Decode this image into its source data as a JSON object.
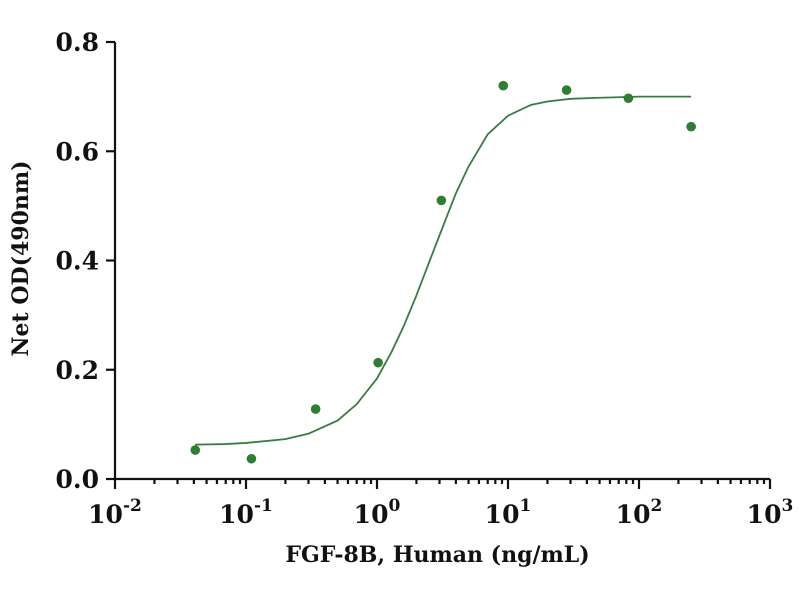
{
  "chart_data": {
    "type": "scatter",
    "title": "",
    "xlabel": "FGF-8B, Human (ng/mL)",
    "ylabel": "Net OD(490nm)",
    "x_scale": "log",
    "xlim": [
      0.01,
      1000
    ],
    "ylim": [
      0,
      0.8
    ],
    "grid": false,
    "legend": "none",
    "colors": {
      "points": "#2e7d32",
      "curve": "#3a7a43",
      "axis": "#111111"
    },
    "y_ticks": [
      {
        "value": 0.0,
        "label": "0.0"
      },
      {
        "value": 0.2,
        "label": "0.2"
      },
      {
        "value": 0.4,
        "label": "0.4"
      },
      {
        "value": 0.6,
        "label": "0.6"
      },
      {
        "value": 0.8,
        "label": "0.8"
      }
    ],
    "x_ticks": [
      {
        "value": 0.01,
        "base": "10",
        "exp": "-2"
      },
      {
        "value": 0.1,
        "base": "10",
        "exp": "-1"
      },
      {
        "value": 1,
        "base": "10",
        "exp": "0"
      },
      {
        "value": 10,
        "base": "10",
        "exp": "1"
      },
      {
        "value": 100,
        "base": "10",
        "exp": "2"
      },
      {
        "value": 1000,
        "base": "10",
        "exp": "3"
      }
    ],
    "series": [
      {
        "type": "scatter",
        "x": [
          0.041,
          0.11,
          0.34,
          1.02,
          3.1,
          9.2,
          28,
          83,
          250
        ],
        "y": [
          0.053,
          0.037,
          0.128,
          0.213,
          0.51,
          0.72,
          0.712,
          0.697,
          0.645
        ]
      },
      {
        "type": "line",
        "x": [
          0.041,
          0.07,
          0.1,
          0.2,
          0.3,
          0.5,
          0.7,
          1.0,
          1.3,
          1.6,
          2.0,
          2.5,
          3.0,
          4.0,
          5.0,
          7.0,
          10,
          15,
          20,
          30,
          50,
          100,
          150,
          250
        ],
        "y": [
          0.063,
          0.064,
          0.066,
          0.073,
          0.083,
          0.107,
          0.137,
          0.184,
          0.234,
          0.28,
          0.336,
          0.397,
          0.446,
          0.523,
          0.572,
          0.631,
          0.665,
          0.685,
          0.691,
          0.696,
          0.698,
          0.7,
          0.7,
          0.7
        ]
      }
    ]
  }
}
